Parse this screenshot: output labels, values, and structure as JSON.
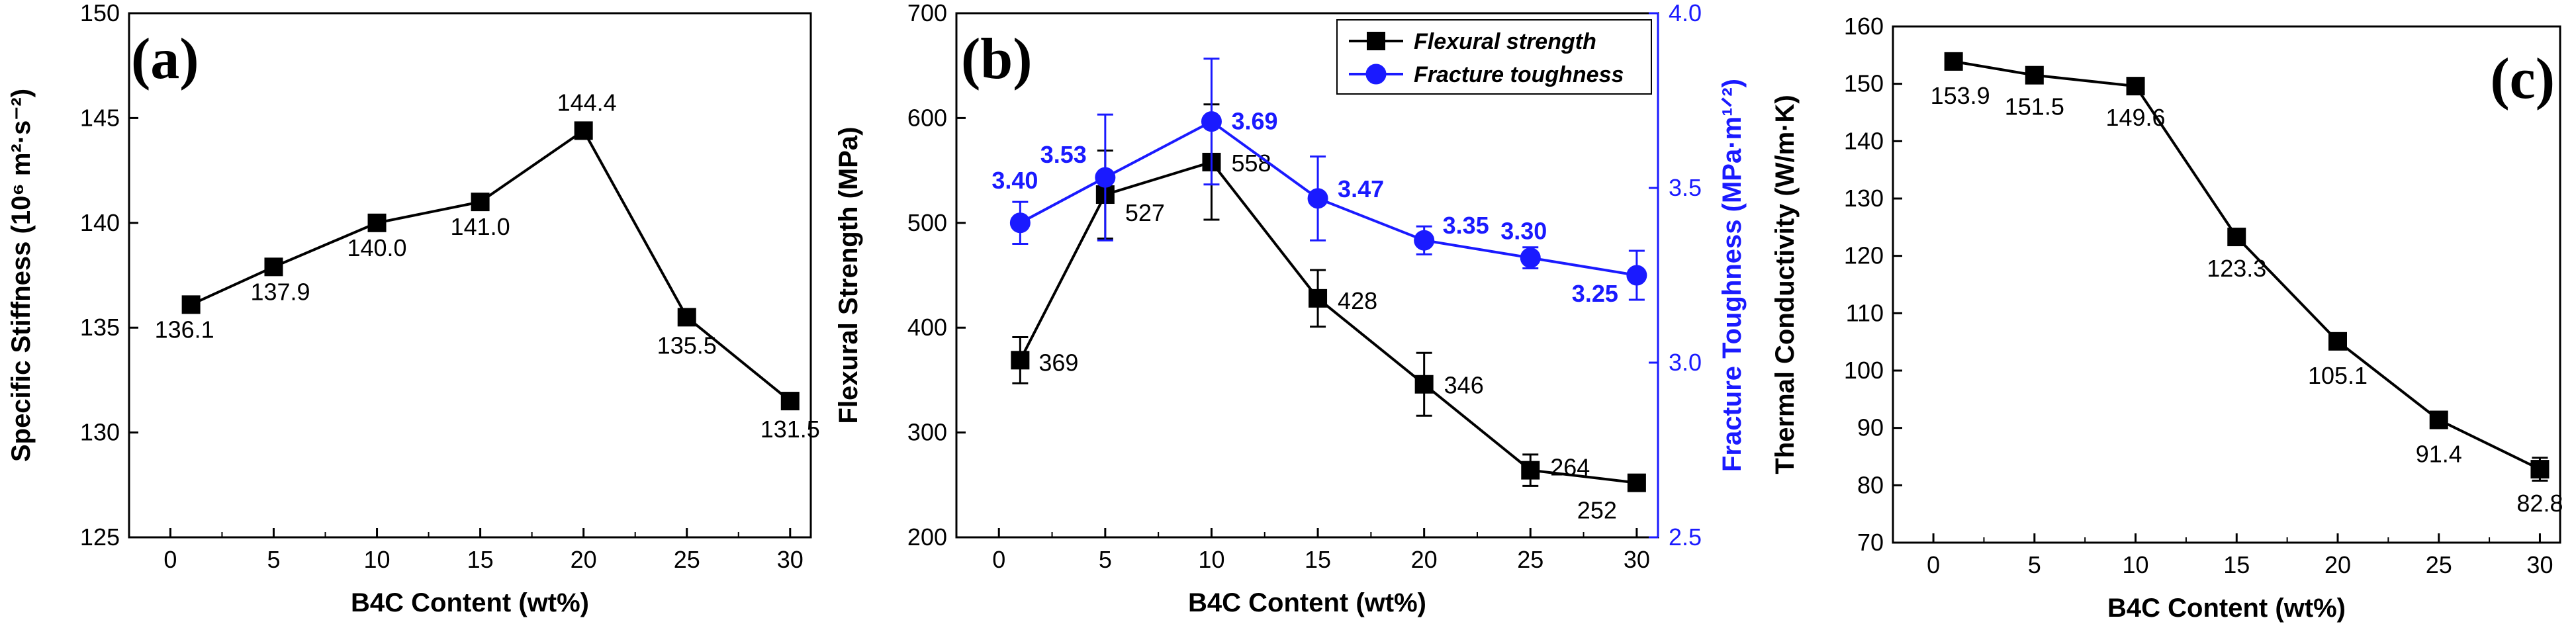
{
  "chart_data": [
    {
      "type": "line",
      "panel_label": "(a)",
      "xlabel": "B4C Content (wt%)",
      "ylabel": "Specific Stiffness (10⁶ m²·s⁻²)",
      "xlim": [
        -2,
        31
      ],
      "ylim": [
        125,
        150
      ],
      "xticks": [
        0,
        5,
        10,
        15,
        20,
        25,
        30
      ],
      "yticks": [
        125,
        130,
        135,
        140,
        145,
        150
      ],
      "series": [
        {
          "x": [
            1,
            5,
            10,
            15,
            20,
            25,
            30
          ],
          "values": [
            136.1,
            137.9,
            140.0,
            141.0,
            144.4,
            135.5,
            131.5
          ],
          "labels": [
            "136.1",
            "137.9",
            "140.0",
            "141.0",
            "144.4",
            "135.5",
            "131.5"
          ],
          "color": "#000000",
          "marker": "square"
        }
      ]
    },
    {
      "type": "line",
      "panel_label": "(b)",
      "xlabel": "B4C Content (wt%)",
      "ylabel": "Flexural Strength (MPa)",
      "ylabel_right": "Fracture Toughness (MPa·m¹ᐟ²)",
      "xlim": [
        -2,
        31
      ],
      "ylim": [
        200,
        700
      ],
      "ylim_right": [
        2.5,
        4.0
      ],
      "xticks": [
        0,
        5,
        10,
        15,
        20,
        25,
        30
      ],
      "yticks": [
        200,
        300,
        400,
        500,
        600,
        700
      ],
      "yticks_right": [
        "2.5",
        "3.0",
        "3.5",
        "4.0"
      ],
      "legend_position": "top-right",
      "series": [
        {
          "name": "Flexural strength",
          "axis": "left",
          "x": [
            1,
            5,
            10,
            15,
            20,
            25,
            30
          ],
          "values": [
            369,
            527,
            558,
            428,
            346,
            264,
            252
          ],
          "errors": [
            22,
            42,
            55,
            27,
            30,
            15,
            5
          ],
          "labels": [
            "369",
            "527",
            "558",
            "428",
            "346",
            "264",
            "252"
          ],
          "color": "#000000",
          "marker": "square"
        },
        {
          "name": "Fracture toughness",
          "axis": "right",
          "x": [
            1,
            5,
            10,
            15,
            20,
            25,
            30
          ],
          "values": [
            3.4,
            3.53,
            3.69,
            3.47,
            3.35,
            3.3,
            3.25
          ],
          "errors": [
            0.06,
            0.18,
            0.18,
            0.12,
            0.04,
            0.03,
            0.07
          ],
          "labels": [
            "3.40",
            "3.53",
            "3.69",
            "3.47",
            "3.35",
            "3.30",
            "3.25"
          ],
          "color": "#1a1aff",
          "marker": "circle"
        }
      ]
    },
    {
      "type": "line",
      "panel_label": "(c)",
      "xlabel": "B4C Content (wt%)",
      "ylabel": "Thermal Conductivity (W/m·K)",
      "xlim": [
        -2,
        31
      ],
      "ylim": [
        70,
        160
      ],
      "xticks": [
        0,
        5,
        10,
        15,
        20,
        25,
        30
      ],
      "yticks": [
        70,
        80,
        90,
        100,
        110,
        120,
        130,
        140,
        150,
        160
      ],
      "series": [
        {
          "x": [
            1,
            5,
            10,
            15,
            20,
            25,
            30
          ],
          "values": [
            153.9,
            151.5,
            149.6,
            123.3,
            105.1,
            91.4,
            82.8
          ],
          "errors": [
            0,
            0,
            0,
            0,
            0,
            0,
            2
          ],
          "labels": [
            "153.9",
            "151.5",
            "149.6",
            "123.3",
            "105.1",
            "91.4",
            "82.8"
          ],
          "color": "#000000",
          "marker": "square"
        }
      ]
    }
  ]
}
